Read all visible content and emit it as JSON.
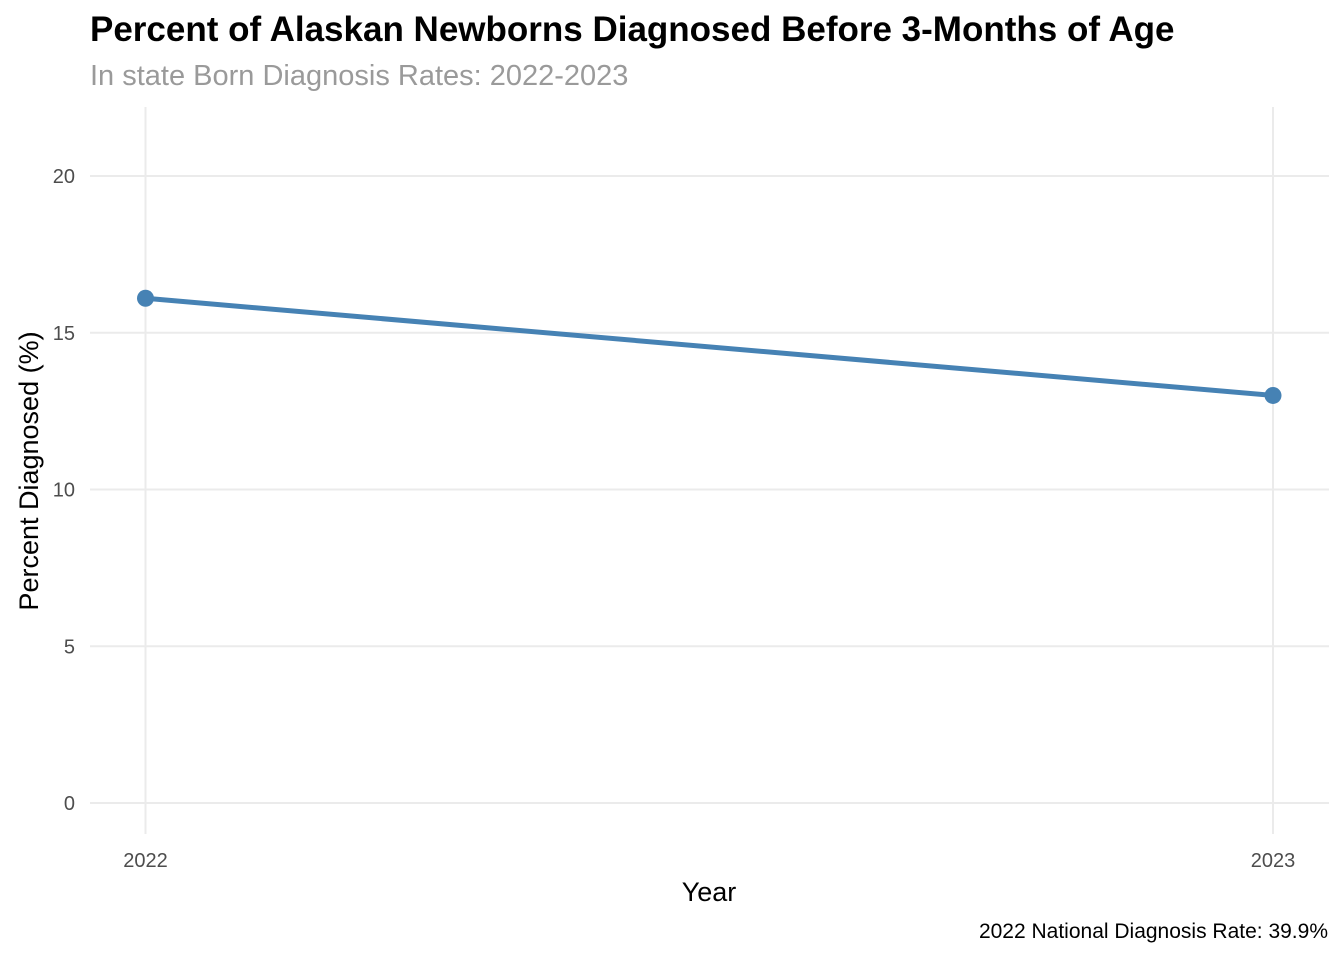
{
  "chart_data": {
    "type": "line",
    "title": "Percent of Alaskan Newborns Diagnosed Before 3-Months of Age",
    "subtitle": "In state Born Diagnosis Rates: 2022-2023",
    "caption": "2022 National Diagnosis Rate: 39.9%",
    "xlabel": "Year",
    "ylabel": "Percent Diagnosed (%)",
    "x": [
      "2022",
      "2023"
    ],
    "series": [
      {
        "values": [
          16.1,
          13.0
        ]
      }
    ],
    "ylim": [
      0,
      20
    ],
    "yticks": [
      0,
      5,
      10,
      15,
      20
    ],
    "grid": true,
    "legend": "none",
    "colors": {
      "line": "#4682b4",
      "grid": "#ebebeb"
    }
  }
}
